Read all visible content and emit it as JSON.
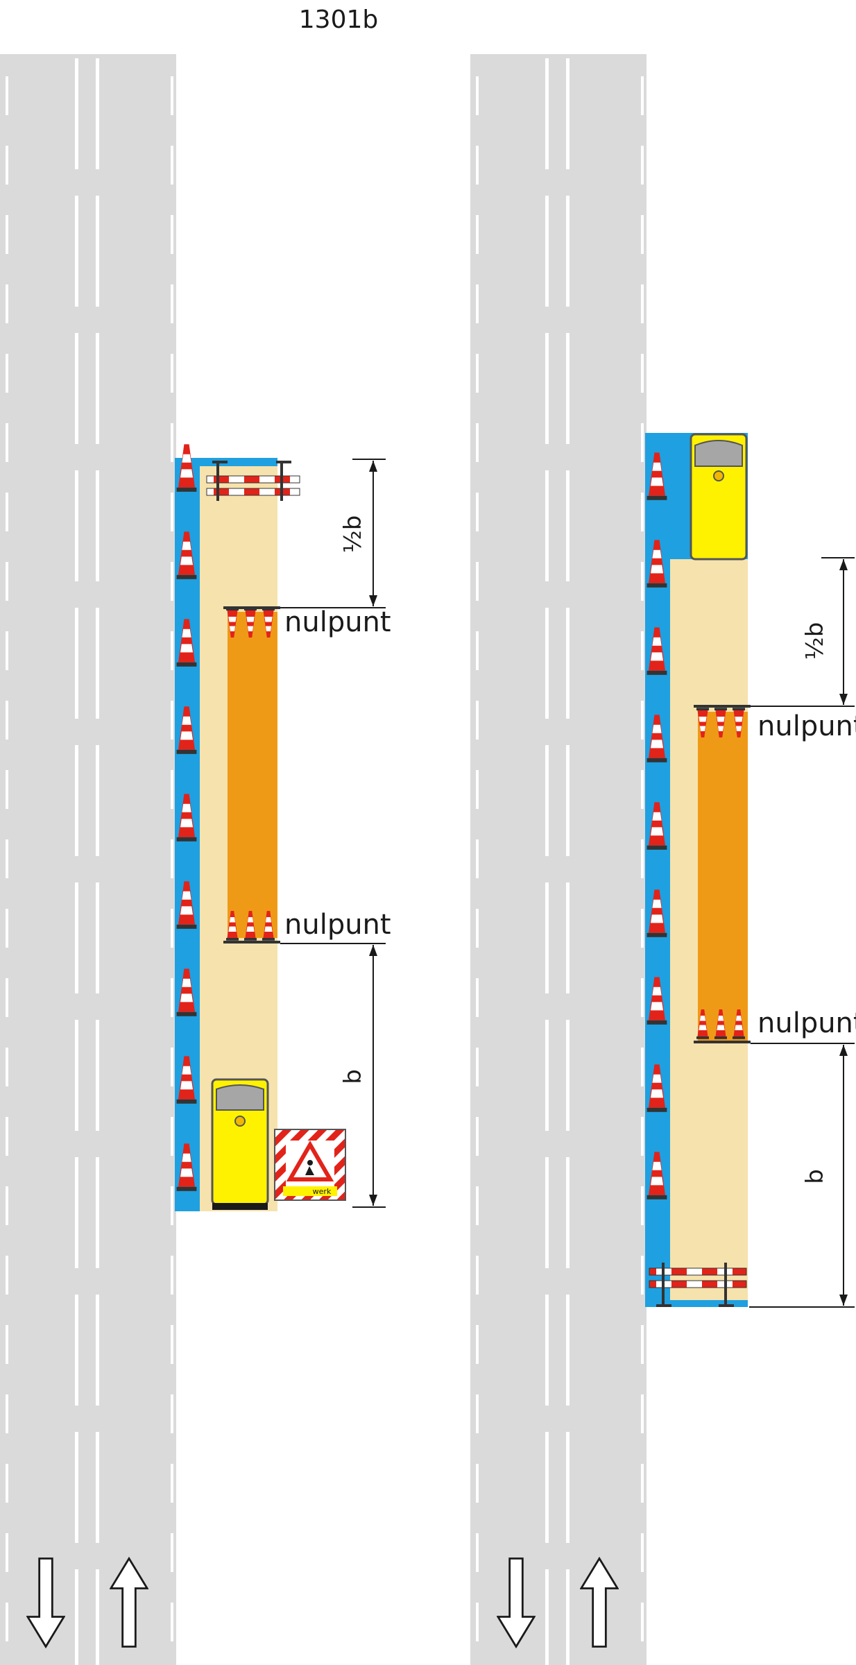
{
  "figure": {
    "code": "1301b"
  },
  "labels": {
    "zero_point": "nulpunt",
    "half_b": "½b",
    "b": "b",
    "sign_text": "werk"
  },
  "left_scheme": {
    "cones_along_edge": 9,
    "cones_per_row": 3,
    "dimensions": [
      "½b",
      "b"
    ]
  },
  "right_scheme": {
    "cones_along_edge": 9,
    "cones_per_row": 3,
    "dimensions": [
      "½b",
      "b"
    ]
  },
  "colors": {
    "road": "#dadada",
    "lane_marking": "#ffffff",
    "shoulder_blue": "#1fa0e0",
    "work_zone": "#f6e2ad",
    "work_area_orange": "#ef9a16",
    "vehicle_yellow": "#fff200",
    "cone_red": "#e2231a"
  },
  "icons": [
    "arrow-down-icon",
    "arrow-up-icon",
    "traffic-cone-icon",
    "barrier-icon",
    "vehicle-icon",
    "roadworks-sign-icon"
  ]
}
